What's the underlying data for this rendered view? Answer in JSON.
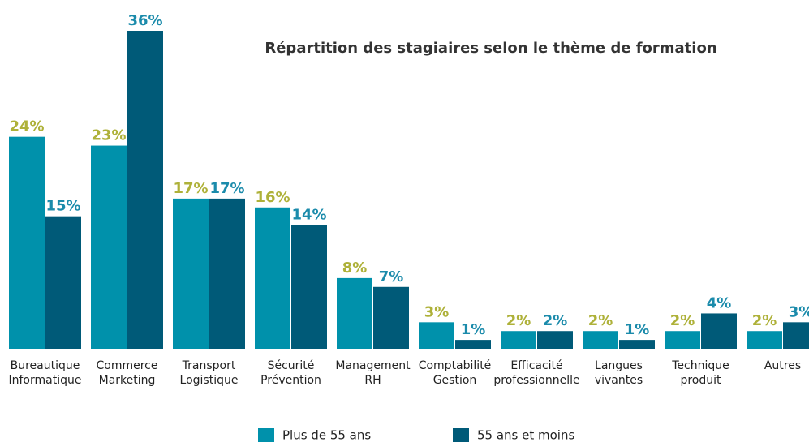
{
  "chart_data": {
    "type": "bar",
    "title": "Répartition des stagiaires selon le thème de formation",
    "categories": [
      "Bureautique\nInformatique",
      "Commerce\nMarketing",
      "Transport\nLogistique",
      "Sécurité\nPrévention",
      "Management\nRH",
      "Comptabilité\nGestion",
      "Efficacité\nprofessionnelle",
      "Langues\nvivantes",
      "Technique\nproduit",
      "Autres"
    ],
    "series": [
      {
        "name": "Plus de 55 ans",
        "color": "#0091ab",
        "label_color": "#aeb139",
        "values": [
          24,
          23,
          17,
          16,
          8,
          3,
          2,
          2,
          2,
          2
        ],
        "value_labels": [
          "24%",
          "23%",
          "17%",
          "16%",
          "8%",
          "3%",
          "2%",
          "2%",
          "2%",
          "2%"
        ]
      },
      {
        "name": "55 ans et moins",
        "color": "#005a78",
        "label_color": "#1b8bab",
        "values": [
          15,
          36,
          17,
          14,
          7,
          1,
          2,
          1,
          4,
          3
        ],
        "value_labels": [
          "15%",
          "36%",
          "17%",
          "14%",
          "7%",
          "1%",
          "2%",
          "1%",
          "4%",
          "3%"
        ]
      }
    ]
  }
}
